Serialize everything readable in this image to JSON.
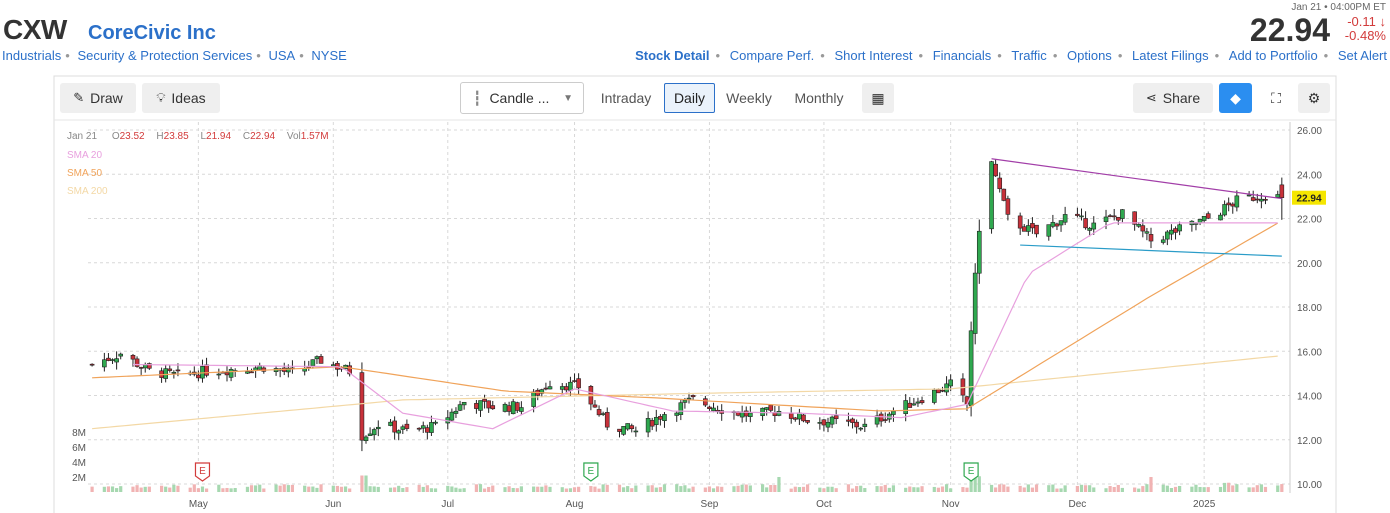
{
  "header": {
    "ticker": "CXW",
    "company": "CoreCivic Inc",
    "breadcrumbs": [
      "Industrials",
      "Security & Protection Services",
      "USA",
      "NYSE"
    ],
    "quote_time": "Jan 21 • 04:00PM ET",
    "price": "22.94",
    "change": "-0.11",
    "change_pct": "-0.48%",
    "links": [
      "Stock Detail",
      "Compare Perf.",
      "Short Interest",
      "Financials",
      "Traffic",
      "Options",
      "Latest Filings",
      "Add to Portfolio",
      "Set Alert"
    ]
  },
  "toolbar": {
    "draw": "Draw",
    "ideas": "Ideas",
    "chart_type": "Candle ...",
    "periods": [
      "Intraday",
      "Daily",
      "Weekly",
      "Monthly"
    ],
    "active_period": "Daily",
    "share": "Share"
  },
  "legend": {
    "date": "Jan 21",
    "open_label": "O",
    "open": "23.52",
    "high_label": "H",
    "high": "23.85",
    "low_label": "L",
    "low": "21.94",
    "close_label": "C",
    "close": "22.94",
    "vol_label": "Vol",
    "vol": "1.57M",
    "sma20": "SMA 20",
    "sma50": "SMA 50",
    "sma200": "SMA 200"
  },
  "colors": {
    "up": "#2fa84f",
    "down": "#c8313a",
    "sma20": "#e8a0de",
    "sma50": "#f0a35a",
    "sma200": "#f3d8a5",
    "link": "#2b70c9",
    "vol_up": "#a6d8b0",
    "vol_down": "#f1b3b3",
    "price_tag": "#f5e600",
    "trend_upper": "#a23ea8",
    "trend_lower": "#2a9cc8"
  },
  "chart_data": {
    "type": "candlestick",
    "y_axis": {
      "min": 10,
      "max": 26,
      "ticks": [
        "26.00",
        "24.00",
        "22.00",
        "20.00",
        "18.00",
        "16.00",
        "14.00",
        "12.00",
        "10.00"
      ]
    },
    "x_axis": {
      "ticks": [
        "May",
        "Jun",
        "Jul",
        "Aug",
        "Sep",
        "Oct",
        "Nov",
        "Dec",
        "2025"
      ]
    },
    "volume_axis": {
      "ticks": [
        "8M",
        "6M",
        "4M",
        "2M"
      ]
    },
    "last_price_label": "22.94",
    "earnings_markers": [
      "E",
      "E",
      "E"
    ],
    "price_anchors": [
      [
        "2024-04-05",
        15.4
      ],
      [
        "2024-04-12",
        15.9
      ],
      [
        "2024-04-19",
        15.1
      ],
      [
        "2024-04-26",
        14.9
      ],
      [
        "2024-05-03",
        15.1
      ],
      [
        "2024-05-10",
        15.2
      ],
      [
        "2024-05-17",
        15.3
      ],
      [
        "2024-05-24",
        15.0
      ],
      [
        "2024-05-31",
        15.6
      ],
      [
        "2024-06-07",
        15.1
      ],
      [
        "2024-06-10",
        12.2
      ],
      [
        "2024-06-14",
        12.7
      ],
      [
        "2024-06-21",
        12.4
      ],
      [
        "2024-06-28",
        12.6
      ],
      [
        "2024-07-05",
        13.7
      ],
      [
        "2024-07-12",
        13.5
      ],
      [
        "2024-07-19",
        13.5
      ],
      [
        "2024-07-26",
        14.6
      ],
      [
        "2024-08-02",
        14.4
      ],
      [
        "2024-08-09",
        12.7
      ],
      [
        "2024-08-16",
        12.4
      ],
      [
        "2024-08-23",
        13.2
      ],
      [
        "2024-08-30",
        13.8
      ],
      [
        "2024-09-06",
        13.4
      ],
      [
        "2024-09-13",
        13.1
      ],
      [
        "2024-09-20",
        13.3
      ],
      [
        "2024-09-27",
        12.9
      ],
      [
        "2024-10-04",
        12.8
      ],
      [
        "2024-10-11",
        12.6
      ],
      [
        "2024-10-18",
        13.3
      ],
      [
        "2024-10-25",
        13.9
      ],
      [
        "2024-11-01",
        14.5
      ],
      [
        "2024-11-05",
        13.6
      ],
      [
        "2024-11-06",
        17.0
      ],
      [
        "2024-11-08",
        21.6
      ],
      [
        "2024-11-11",
        24.5
      ],
      [
        "2024-11-15",
        22.0
      ],
      [
        "2024-11-22",
        21.3
      ],
      [
        "2024-11-29",
        22.1
      ],
      [
        "2024-12-06",
        21.7
      ],
      [
        "2024-12-13",
        22.2
      ],
      [
        "2024-12-20",
        21.0
      ],
      [
        "2024-12-27",
        21.5
      ],
      [
        "2025-01-03",
        22.0
      ],
      [
        "2025-01-10",
        22.8
      ],
      [
        "2025-01-17",
        23.1
      ],
      [
        "2025-01-21",
        22.94
      ]
    ],
    "volume_note_millions": {
      "typical": 0.8,
      "peak": 2.7
    },
    "sma20_anchors": [
      [
        "2024-04-15",
        15.4
      ],
      [
        "2024-06-05",
        15.3
      ],
      [
        "2024-06-20",
        13.2
      ],
      [
        "2024-07-12",
        12.5
      ],
      [
        "2024-08-01",
        14.3
      ],
      [
        "2024-08-25",
        13.3
      ],
      [
        "2024-09-25",
        13.2
      ],
      [
        "2024-10-20",
        13.0
      ],
      [
        "2024-11-05",
        13.6
      ],
      [
        "2024-11-20",
        19.5
      ],
      [
        "2024-12-10",
        21.8
      ],
      [
        "2025-01-21",
        21.8
      ]
    ],
    "sma50_anchors": [
      [
        "2024-04-05",
        14.8
      ],
      [
        "2024-06-05",
        15.3
      ],
      [
        "2024-07-15",
        14.2
      ],
      [
        "2024-08-20",
        13.9
      ],
      [
        "2024-10-15",
        13.3
      ],
      [
        "2024-11-05",
        13.4
      ],
      [
        "2024-12-20",
        18.5
      ],
      [
        "2025-01-21",
        21.9
      ]
    ],
    "sma200_anchors": [
      [
        "2024-04-05",
        12.5
      ],
      [
        "2024-06-20",
        13.8
      ],
      [
        "2024-09-01",
        14.1
      ],
      [
        "2024-11-01",
        14.3
      ],
      [
        "2025-01-21",
        15.8
      ]
    ],
    "trendlines": [
      {
        "from": [
          "2024-11-11",
          24.7
        ],
        "to": [
          "2025-01-21",
          22.9
        ]
      },
      {
        "from": [
          "2024-11-18",
          20.8
        ],
        "to": [
          "2025-01-21",
          20.3
        ]
      }
    ]
  }
}
